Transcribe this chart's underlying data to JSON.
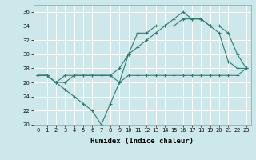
{
  "xlabel": "Humidex (Indice chaleur)",
  "ylabel": "",
  "background_color": "#cde8ea",
  "line_color": "#2e7d74",
  "grid_color": "#ffffff",
  "xlim": [
    -0.5,
    23.5
  ],
  "ylim": [
    20,
    37
  ],
  "yticks": [
    20,
    22,
    24,
    26,
    28,
    30,
    32,
    34,
    36
  ],
  "xtick_labels": [
    "0",
    "1",
    "2",
    "3",
    "4",
    "5",
    "6",
    "7",
    "8",
    "9",
    "10",
    "11",
    "12",
    "13",
    "14",
    "15",
    "16",
    "17",
    "18",
    "19",
    "20",
    "21",
    "22",
    "23"
  ],
  "line1": [
    27,
    27,
    26,
    27,
    27,
    27,
    27,
    27,
    27,
    26,
    27,
    27,
    27,
    27,
    27,
    27,
    27,
    27,
    27,
    27,
    27,
    27,
    27,
    28
  ],
  "line2": [
    27,
    27,
    26,
    25,
    24,
    23,
    22,
    20,
    23,
    26,
    30,
    33,
    33,
    34,
    34,
    35,
    36,
    35,
    35,
    34,
    33,
    29,
    28,
    28
  ],
  "line3": [
    27,
    27,
    26,
    26,
    27,
    27,
    27,
    27,
    27,
    28,
    30,
    31,
    32,
    33,
    34,
    34,
    35,
    35,
    35,
    34,
    34,
    33,
    30,
    28
  ],
  "marker": "+",
  "markersize": 3.0,
  "linewidth": 0.8,
  "xlabel_fontsize": 6.5,
  "tick_fontsize": 5.0
}
